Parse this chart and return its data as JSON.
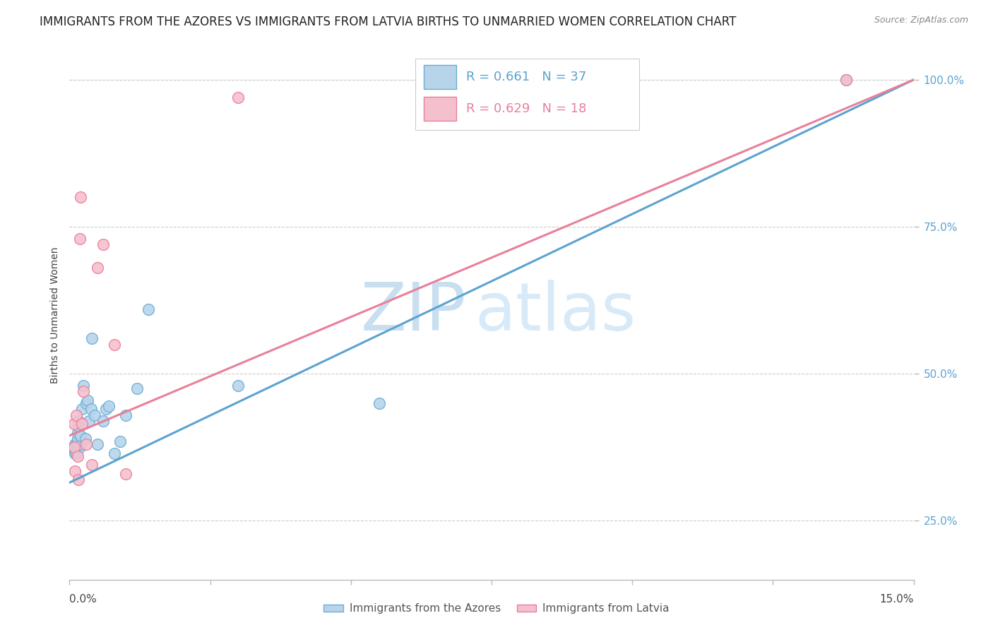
{
  "title": "IMMIGRANTS FROM THE AZORES VS IMMIGRANTS FROM LATVIA BIRTHS TO UNMARRIED WOMEN CORRELATION CHART",
  "source": "Source: ZipAtlas.com",
  "ylabel": "Births to Unmarried Women",
  "xlim": [
    0.0,
    0.15
  ],
  "ylim": [
    0.15,
    1.05
  ],
  "yticks": [
    0.25,
    0.5,
    0.75,
    1.0
  ],
  "ytick_labels": [
    "25.0%",
    "50.0%",
    "75.0%",
    "100.0%"
  ],
  "xticks": [
    0.0,
    0.025,
    0.05,
    0.075,
    0.1,
    0.125,
    0.15
  ],
  "azores_R": 0.661,
  "azores_N": 37,
  "latvia_R": 0.629,
  "latvia_N": 18,
  "azores_color": "#b8d4ea",
  "latvia_color": "#f5c0ce",
  "azores_edge_color": "#6aaed6",
  "latvia_edge_color": "#e8809a",
  "azores_line_color": "#5ba3d0",
  "latvia_line_color": "#e8809a",
  "background_color": "#ffffff",
  "grid_color": "#cccccc",
  "azores_x": [
    0.0008,
    0.0008,
    0.001,
    0.001,
    0.001,
    0.0012,
    0.0012,
    0.0014,
    0.0015,
    0.0015,
    0.0016,
    0.0016,
    0.0018,
    0.002,
    0.002,
    0.0022,
    0.0025,
    0.0028,
    0.003,
    0.0032,
    0.0035,
    0.0038,
    0.004,
    0.0045,
    0.005,
    0.006,
    0.0065,
    0.007,
    0.008,
    0.009,
    0.01,
    0.012,
    0.014,
    0.03,
    0.055,
    0.098,
    0.138
  ],
  "azores_y": [
    0.37,
    0.375,
    0.365,
    0.375,
    0.38,
    0.365,
    0.38,
    0.38,
    0.39,
    0.4,
    0.41,
    0.42,
    0.375,
    0.38,
    0.395,
    0.44,
    0.48,
    0.39,
    0.45,
    0.455,
    0.42,
    0.44,
    0.56,
    0.43,
    0.38,
    0.42,
    0.44,
    0.445,
    0.365,
    0.385,
    0.43,
    0.475,
    0.61,
    0.48,
    0.45,
    0.975,
    1.0
  ],
  "latvia_x": [
    0.0008,
    0.0008,
    0.001,
    0.0012,
    0.0014,
    0.0016,
    0.0018,
    0.002,
    0.0022,
    0.0025,
    0.003,
    0.004,
    0.005,
    0.006,
    0.008,
    0.01,
    0.03,
    0.138
  ],
  "latvia_y": [
    0.375,
    0.415,
    0.335,
    0.43,
    0.36,
    0.32,
    0.73,
    0.8,
    0.415,
    0.47,
    0.38,
    0.345,
    0.68,
    0.72,
    0.55,
    0.33,
    0.97,
    1.0
  ],
  "azores_line_x0": 0.0,
  "azores_line_y0": 0.315,
  "azores_line_x1": 0.15,
  "azores_line_y1": 1.0,
  "latvia_line_x0": 0.0,
  "latvia_line_y0": 0.395,
  "latvia_line_x1": 0.15,
  "latvia_line_y1": 1.0,
  "watermark_zip": "ZIP",
  "watermark_atlas": "atlas",
  "watermark_color": "#dceef8",
  "title_fontsize": 12,
  "axis_label_fontsize": 10,
  "tick_fontsize": 10,
  "legend_fontsize": 13
}
